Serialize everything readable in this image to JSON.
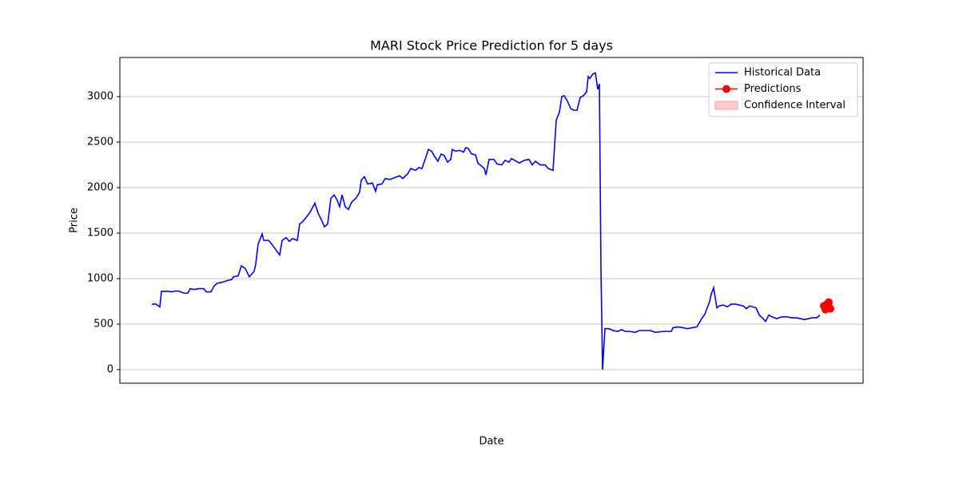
{
  "chart_data": {
    "type": "line",
    "title": "MARI Stock Price Prediction for 5 days",
    "x_label": "Date",
    "y_label": "Price",
    "xlim": [
      150,
      1080
    ],
    "ylim": [
      -149,
      3430
    ],
    "yticks": [
      0,
      500,
      1000,
      1500,
      2000,
      2500,
      3000
    ],
    "grid": true,
    "legend_position": "upper right",
    "series": [
      {
        "name": "Historical Data",
        "color": "#0000ff",
        "x": [
          190,
          195,
          200,
          202,
          210,
          215,
          220,
          225,
          230,
          235,
          238,
          243,
          248,
          255,
          258,
          264,
          268,
          272,
          278,
          285,
          290,
          292,
          298,
          302,
          307,
          312,
          318,
          320,
          323,
          328,
          330,
          336,
          340,
          345,
          350,
          353,
          358,
          362,
          366,
          372,
          375,
          378,
          382,
          388,
          394,
          398,
          402,
          406,
          410,
          414,
          418,
          422,
          425,
          428,
          432,
          436,
          440,
          446,
          450,
          452,
          456,
          460,
          466,
          470,
          472,
          478,
          482,
          488,
          494,
          500,
          504,
          510,
          514,
          520,
          524,
          528,
          532,
          536,
          540,
          544,
          548,
          552,
          556,
          560,
          564,
          566,
          570,
          575,
          580,
          583,
          586,
          590,
          595,
          598,
          602,
          606,
          608,
          612,
          618,
          622,
          628,
          632,
          637,
          640,
          646,
          650,
          656,
          662,
          666,
          670,
          676,
          682,
          686,
          692,
          696,
          700,
          703,
          706,
          710,
          714,
          718,
          722,
          726,
          730,
          734,
          736,
          738,
          742,
          745,
          748,
          750,
          752,
          754,
          757,
          762,
          767,
          773,
          778,
          782,
          788,
          795,
          800,
          806,
          814,
          820,
          830,
          840,
          842,
          848,
          855,
          860,
          866,
          872,
          878,
          882,
          885,
          888,
          890,
          893,
          897,
          900,
          905,
          910,
          915,
          920,
          925,
          930,
          934,
          938,
          942,
          946,
          950,
          955,
          958,
          962,
          966,
          972,
          978,
          985,
          990,
          996,
          1002,
          1006,
          1012,
          1016,
          1022,
          1026
        ],
        "values": [
          720,
          720,
          690,
          860,
          860,
          855,
          865,
          860,
          840,
          840,
          890,
          880,
          890,
          890,
          855,
          855,
          920,
          950,
          960,
          980,
          990,
          1020,
          1030,
          1140,
          1110,
          1020,
          1080,
          1160,
          1380,
          1490,
          1420,
          1420,
          1380,
          1320,
          1260,
          1420,
          1450,
          1410,
          1440,
          1420,
          1600,
          1620,
          1660,
          1730,
          1830,
          1720,
          1650,
          1570,
          1600,
          1880,
          1920,
          1860,
          1790,
          1920,
          1790,
          1760,
          1840,
          1890,
          1950,
          2080,
          2120,
          2040,
          2050,
          1960,
          2030,
          2040,
          2100,
          2090,
          2110,
          2130,
          2100,
          2150,
          2210,
          2190,
          2220,
          2210,
          2310,
          2420,
          2400,
          2340,
          2290,
          2370,
          2350,
          2280,
          2310,
          2420,
          2400,
          2410,
          2390,
          2440,
          2430,
          2370,
          2360,
          2270,
          2240,
          2210,
          2140,
          2310,
          2310,
          2260,
          2250,
          2300,
          2280,
          2320,
          2290,
          2270,
          2300,
          2310,
          2250,
          2290,
          2250,
          2250,
          2210,
          2190,
          2740,
          2830,
          3000,
          3010,
          2950,
          2870,
          2850,
          2850,
          2990,
          3010,
          3050,
          3220,
          3200,
          3250,
          3260,
          3080,
          3140,
          1100,
          0,
          450,
          450,
          430,
          420,
          440,
          420,
          420,
          410,
          430,
          430,
          430,
          410,
          420,
          420,
          460,
          470,
          460,
          450,
          460,
          470,
          560,
          610,
          680,
          750,
          830,
          900,
          680,
          700,
          710,
          690,
          720,
          720,
          710,
          700,
          670,
          700,
          690,
          680,
          600,
          560,
          530,
          600,
          580,
          560,
          580,
          580,
          570,
          570,
          560,
          550,
          560,
          570,
          570,
          600
        ]
      },
      {
        "name": "Predictions",
        "color": "#ff0000",
        "x": [
          1031,
          1033,
          1035,
          1037,
          1039
        ],
        "values": [
          700,
          660,
          720,
          740,
          670
        ]
      },
      {
        "name": "Confidence Interval",
        "color": "#ff0000",
        "x": [
          1031,
          1033,
          1035,
          1037,
          1039
        ],
        "lower": [
          680,
          640,
          700,
          720,
          650
        ],
        "upper": [
          720,
          680,
          740,
          760,
          690
        ]
      }
    ]
  }
}
